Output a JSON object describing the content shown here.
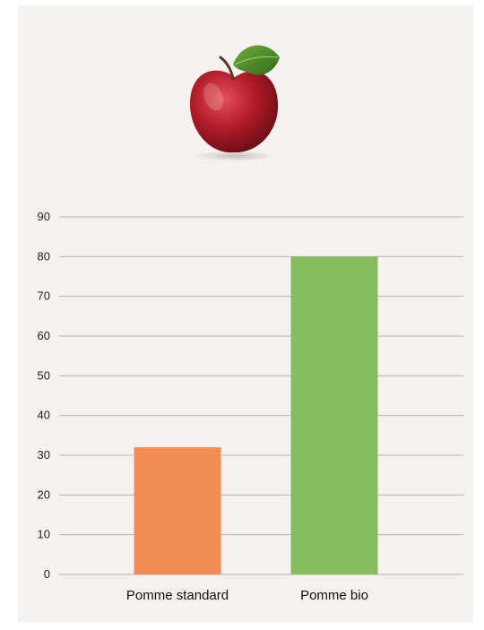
{
  "illustration": {
    "icon": "apple-icon"
  },
  "chart_data": {
    "type": "bar",
    "title": "",
    "xlabel": "",
    "ylabel": "",
    "categories": [
      "Pomme standard",
      "Pomme bio"
    ],
    "values": [
      32,
      80
    ],
    "colors": [
      "#f28e55",
      "#84bd5e"
    ],
    "ylim": [
      0,
      90
    ],
    "yticks": [
      0,
      10,
      20,
      30,
      40,
      50,
      60,
      70,
      80,
      90
    ],
    "grid": true,
    "legend": "none",
    "gridline_color": "#b8b3ae"
  }
}
